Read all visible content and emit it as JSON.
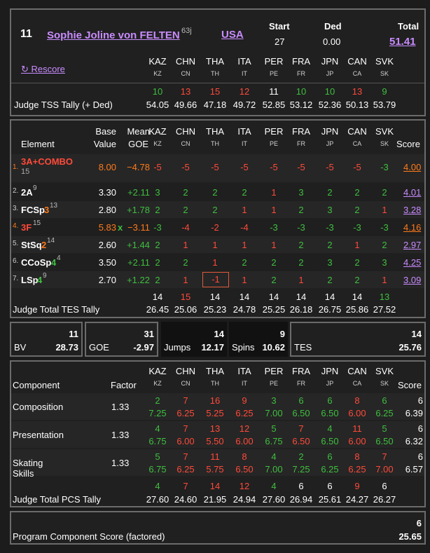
{
  "judges": [
    "KAZ",
    "CHN",
    "THA",
    "ITA",
    "PER",
    "FRA",
    "JPN",
    "CAN",
    "SVK"
  ],
  "judge_codes": [
    "KZ",
    "CN",
    "TH",
    "IT",
    "PE",
    "FR",
    "JP",
    "CA",
    "SK"
  ],
  "header": {
    "rank": "11",
    "skater": "Sophie Joline von FELTEN",
    "skater_sup": "63j",
    "nation": "USA",
    "start_label": "Start",
    "start_value": "27",
    "ded_label": "Ded",
    "ded_value": "0.00",
    "total_label": "Total",
    "total_value": "51.41",
    "rescore": "↻ Rescore",
    "tss_label": "Judge TSS Tally (+ Ded)",
    "tss_ranks": [
      "10",
      "13",
      "15",
      "12",
      "11",
      "10",
      "10",
      "13",
      "9"
    ],
    "tss_values": [
      "54.05",
      "49.66",
      "47.18",
      "49.72",
      "52.85",
      "53.12",
      "52.36",
      "50.13",
      "53.79"
    ]
  },
  "elements_table": {
    "headers": {
      "element": "Element",
      "base": "Base",
      "value": "Value",
      "mean": "Mean",
      "goe": "GOE",
      "score": "Score"
    },
    "rows": [
      {
        "num": "1.",
        "name": "3A+COMBO",
        "sub": "15",
        "base": "8.00",
        "mark": "",
        "goe": "−4.78",
        "scores": [
          "-5",
          "-5",
          "-5",
          "-5",
          "-5",
          "-5",
          "-5",
          "-5",
          "-3"
        ],
        "score": "4.00"
      },
      {
        "num": "2.",
        "name": "2A",
        "sup": "9",
        "base": "3.30",
        "mark": "",
        "goe": "+2.11",
        "scores": [
          "3",
          "2",
          "2",
          "2",
          "1",
          "3",
          "2",
          "2",
          "2"
        ],
        "score": "4.01"
      },
      {
        "num": "3.",
        "name": "FCSp",
        "lvl": "3",
        "sup": "13",
        "base": "2.80",
        "mark": "",
        "goe": "+1.78",
        "scores": [
          "2",
          "2",
          "2",
          "1",
          "1",
          "2",
          "3",
          "2",
          "1"
        ],
        "score": "3.28"
      },
      {
        "num": "4.",
        "name": "3F",
        "sup": "15",
        "base": "5.83",
        "mark": "x",
        "goe": "−3.11",
        "scores": [
          "-3",
          "-4",
          "-2",
          "-4",
          "-3",
          "-3",
          "-3",
          "-3",
          "-3"
        ],
        "score": "4.16"
      },
      {
        "num": "5.",
        "name": "StSq",
        "lvl": "2",
        "sup": "14",
        "base": "2.60",
        "mark": "",
        "goe": "+1.44",
        "scores": [
          "2",
          "1",
          "1",
          "1",
          "1",
          "2",
          "2",
          "1",
          "2"
        ],
        "score": "2.97"
      },
      {
        "num": "6.",
        "name": "CCoSp",
        "lvl": "4",
        "sup": "4",
        "base": "3.50",
        "mark": "",
        "goe": "+2.11",
        "scores": [
          "2",
          "2",
          "1",
          "2",
          "2",
          "2",
          "3",
          "2",
          "3"
        ],
        "score": "4.25"
      },
      {
        "num": "7.",
        "name": "LSp",
        "lvl": "4",
        "sup": "9",
        "base": "2.70",
        "mark": "",
        "goe": "+1.22",
        "scores": [
          "2",
          "1",
          "-1",
          "1",
          "2",
          "1",
          "2",
          "2",
          "1"
        ],
        "score": "3.09"
      }
    ],
    "tes_label": "Judge Total TES Tally",
    "tes_ranks": [
      "14",
      "15",
      "14",
      "14",
      "14",
      "14",
      "14",
      "14",
      "13"
    ],
    "tes_values": [
      "26.45",
      "25.06",
      "25.23",
      "24.78",
      "25.25",
      "26.18",
      "26.75",
      "25.86",
      "27.52"
    ]
  },
  "summary": {
    "bv_rank": "11",
    "bv_label": "BV",
    "bv_value": "28.73",
    "goe_rank": "31",
    "goe_label": "GOE",
    "goe_value": "-2.97",
    "jumps_rank": "14",
    "jumps_label": "Jumps",
    "jumps_value": "12.17",
    "spins_rank": "9",
    "spins_label": "Spins",
    "spins_value": "10.62",
    "tes_rank": "14",
    "tes_label": "TES",
    "tes_value": "25.76"
  },
  "components": {
    "headers": {
      "component": "Component",
      "factor": "Factor",
      "score": "Score"
    },
    "rows": [
      {
        "name": "Composition",
        "factor": "1.33",
        "ranks": [
          "2",
          "7",
          "16",
          "9",
          "3",
          "6",
          "6",
          "8",
          "6"
        ],
        "values": [
          "7.25",
          "6.25",
          "5.25",
          "6.25",
          "7.00",
          "6.50",
          "6.50",
          "6.00",
          "6.25"
        ],
        "score_rank": "6",
        "score": "6.39"
      },
      {
        "name": "Presentation",
        "factor": "1.33",
        "ranks": [
          "4",
          "7",
          "13",
          "12",
          "5",
          "7",
          "4",
          "11",
          "5"
        ],
        "values": [
          "6.75",
          "6.00",
          "5.50",
          "6.00",
          "6.75",
          "6.50",
          "6.50",
          "6.00",
          "6.50"
        ],
        "score_rank": "6",
        "score": "6.32"
      },
      {
        "name": "Skating Skills",
        "factor": "1.33",
        "ranks": [
          "5",
          "7",
          "11",
          "8",
          "4",
          "2",
          "6",
          "8",
          "7"
        ],
        "values": [
          "6.75",
          "6.25",
          "5.75",
          "6.50",
          "7.00",
          "7.25",
          "6.25",
          "6.25",
          "7.00"
        ],
        "score_rank": "6",
        "score": "6.57"
      }
    ],
    "pcs_label": "Judge Total PCS Tally",
    "pcs_ranks": [
      "4",
      "7",
      "14",
      "12",
      "4",
      "6",
      "6",
      "9",
      "6"
    ],
    "pcs_values": [
      "27.60",
      "24.60",
      "21.95",
      "24.94",
      "27.60",
      "26.94",
      "25.61",
      "24.27",
      "26.27"
    ]
  },
  "pcs_total": {
    "label": "Program Component Score (factored)",
    "rank": "6",
    "value": "25.65"
  },
  "colors": {
    "green": "#3fbf3f",
    "red": "#ff4a3a",
    "purple": "#c98cff",
    "orange": "#ff7a1a"
  }
}
